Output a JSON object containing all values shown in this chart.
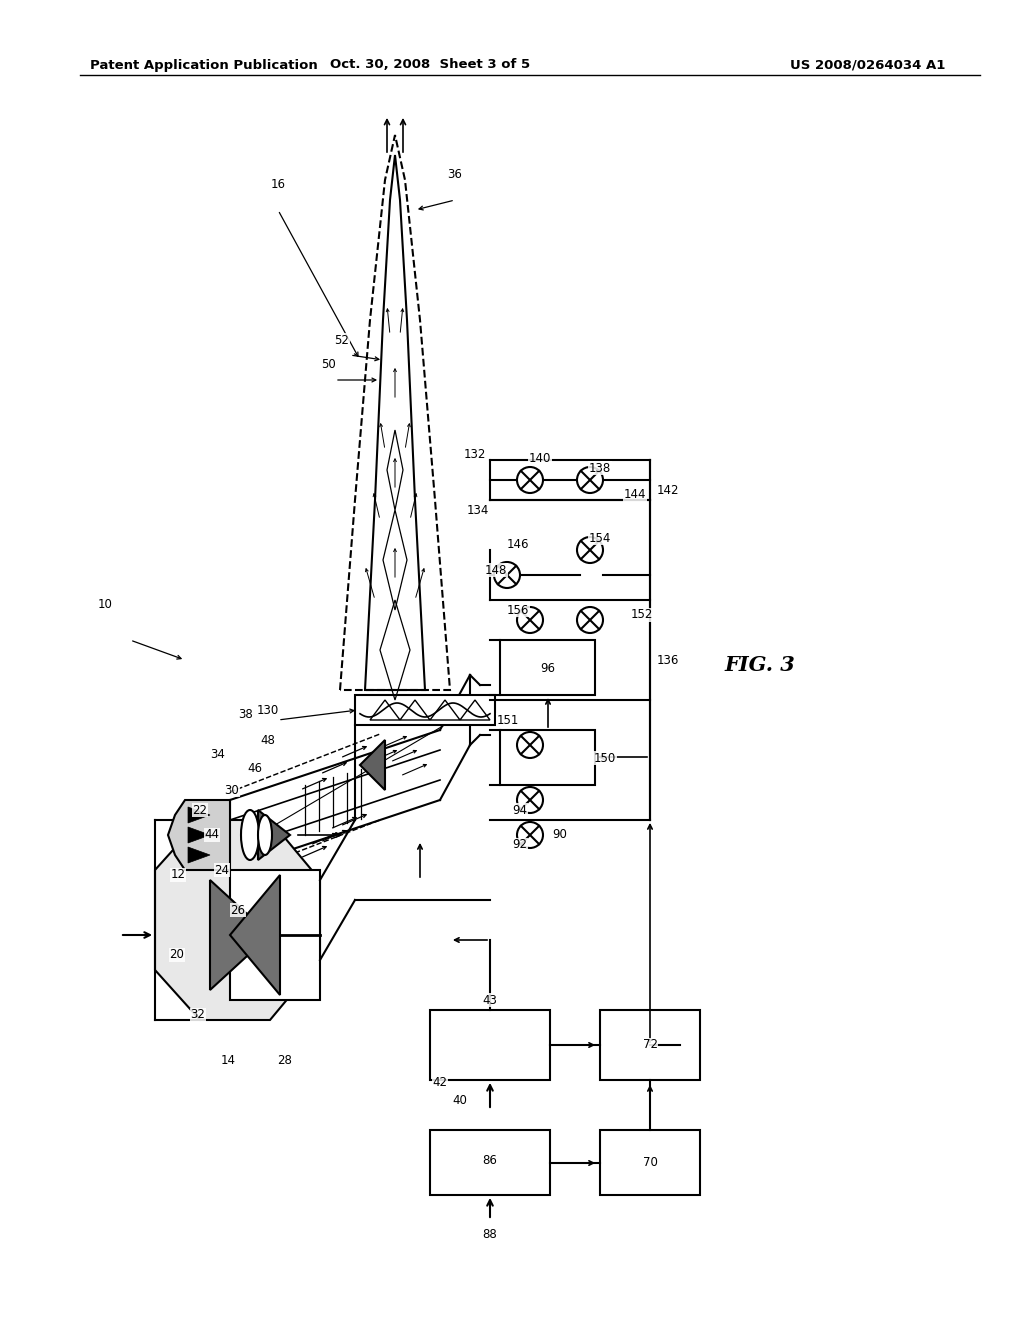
{
  "bg_color": "#ffffff",
  "header_left": "Patent Application Publication",
  "header_mid": "Oct. 30, 2008  Sheet 3 of 5",
  "header_right": "US 2008/0264034 A1",
  "fig_label": "FIG. 3"
}
